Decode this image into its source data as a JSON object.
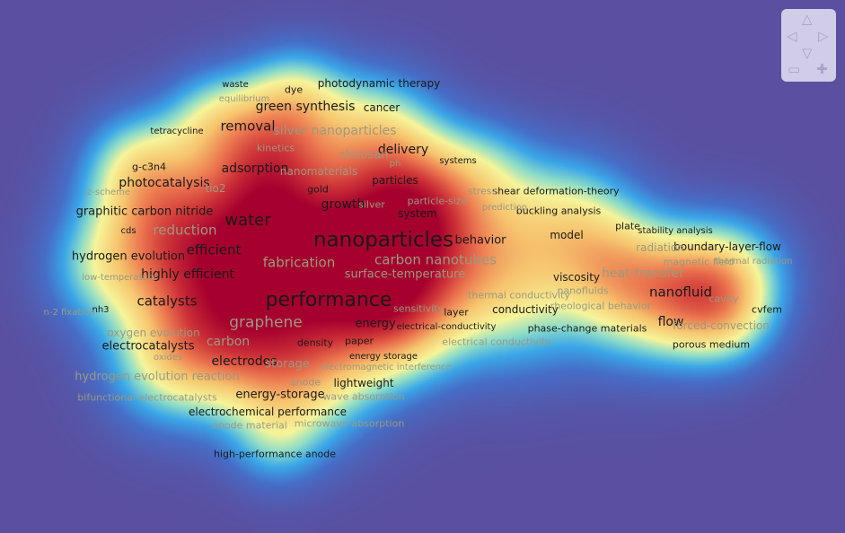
{
  "colors": {
    "background": "#5a4fa0",
    "density_low": "#3aa6e8",
    "density_mid": "#f6f59a",
    "density_high": "#a6002e",
    "label_strong": "#1a1a1a",
    "label_faint": "#9a9a80"
  },
  "terms": [
    {
      "label": "nanoparticles",
      "strong": true
    },
    {
      "label": "performance",
      "strong": true
    },
    {
      "label": "water",
      "strong": true
    },
    {
      "label": "graphene",
      "strong": false
    },
    {
      "label": "removal",
      "strong": true
    },
    {
      "label": "adsorption",
      "strong": true
    },
    {
      "label": "efficient",
      "strong": true
    },
    {
      "label": "reduction",
      "strong": false
    },
    {
      "label": "fabrication",
      "strong": false
    },
    {
      "label": "carbon nanotubes",
      "strong": false
    },
    {
      "label": "catalysts",
      "strong": true
    },
    {
      "label": "nanofluid",
      "strong": true
    },
    {
      "label": "heat-transfer",
      "strong": false
    },
    {
      "label": "silver nanoparticles",
      "strong": false
    },
    {
      "label": "green synthesis",
      "strong": true
    },
    {
      "label": "delivery",
      "strong": true
    },
    {
      "label": "chitosan",
      "strong": false
    },
    {
      "label": "growth",
      "strong": true
    },
    {
      "label": "behavior",
      "strong": true
    },
    {
      "label": "photocatalysis",
      "strong": true
    },
    {
      "label": "graphitic carbon nitride",
      "strong": true
    },
    {
      "label": "hydrogen evolution",
      "strong": true
    },
    {
      "label": "highly efficient",
      "strong": true
    },
    {
      "label": "electrocatalysts",
      "strong": true
    },
    {
      "label": "electrodes",
      "strong": true
    },
    {
      "label": "carbon",
      "strong": false
    },
    {
      "label": "energy-storage",
      "strong": true
    },
    {
      "label": "hydrogen evolution reaction",
      "strong": false
    },
    {
      "label": "energy",
      "strong": true
    },
    {
      "label": "surface-temperature",
      "strong": false
    },
    {
      "label": "flow",
      "strong": true
    },
    {
      "label": "conductivity",
      "strong": true
    },
    {
      "label": "model",
      "strong": true
    },
    {
      "label": "viscosity",
      "strong": true
    },
    {
      "label": "forced-convection",
      "strong": false
    },
    {
      "label": "boundary-layer-flow",
      "strong": true
    },
    {
      "label": "shear deformation-theory",
      "strong": true
    },
    {
      "label": "buckling analysis",
      "strong": true
    },
    {
      "label": "photodynamic therapy",
      "strong": true
    },
    {
      "label": "cancer",
      "strong": true
    },
    {
      "label": "particles",
      "strong": true
    },
    {
      "label": "system",
      "strong": true
    },
    {
      "label": "storage",
      "strong": false
    },
    {
      "label": "lightweight",
      "strong": true
    },
    {
      "label": "electrochemical performance",
      "strong": true
    },
    {
      "label": "oxygen evolution",
      "strong": false
    },
    {
      "label": "nanomaterials",
      "strong": false
    },
    {
      "label": "kinetics",
      "strong": false
    },
    {
      "label": "g-c3n4",
      "strong": true
    },
    {
      "label": "tio2",
      "strong": false
    },
    {
      "label": "waste",
      "strong": true
    },
    {
      "label": "dye",
      "strong": true
    },
    {
      "label": "equilibrium",
      "strong": false
    },
    {
      "label": "tetracycline",
      "strong": true
    },
    {
      "label": "z-scheme",
      "strong": false
    },
    {
      "label": "cds",
      "strong": true
    },
    {
      "label": "low-temperature",
      "strong": false
    },
    {
      "label": "nh3",
      "strong": true
    },
    {
      "label": "n-2 fixation",
      "strong": false
    },
    {
      "label": "oxides",
      "strong": false
    },
    {
      "label": "bifunctional electrocatalysts",
      "strong": false
    },
    {
      "label": "anode",
      "strong": false
    },
    {
      "label": "anode material",
      "strong": false
    },
    {
      "label": "microwave-absorption",
      "strong": false
    },
    {
      "label": "wave absorption",
      "strong": false
    },
    {
      "label": "high-performance anode",
      "strong": true
    },
    {
      "label": "gold",
      "strong": true
    },
    {
      "label": "ph",
      "strong": false
    },
    {
      "label": "systems",
      "strong": true
    },
    {
      "label": "silver",
      "strong": false
    },
    {
      "label": "particle-size",
      "strong": false
    },
    {
      "label": "stress",
      "strong": false
    },
    {
      "label": "prediction",
      "strong": false
    },
    {
      "label": "sensitivity",
      "strong": false
    },
    {
      "label": "layer",
      "strong": true
    },
    {
      "label": "thermal conductivity",
      "strong": false
    },
    {
      "label": "electrical-conductivity",
      "strong": true
    },
    {
      "label": "electrical conductivity",
      "strong": false
    },
    {
      "label": "density",
      "strong": true
    },
    {
      "label": "paper",
      "strong": true
    },
    {
      "label": "energy storage",
      "strong": true
    },
    {
      "label": "electromagnetic interference",
      "strong": false
    },
    {
      "label": "phase-change materials",
      "strong": true
    },
    {
      "label": "rheological behavior",
      "strong": false
    },
    {
      "label": "nanofluids",
      "strong": false
    },
    {
      "label": "plate",
      "strong": true
    },
    {
      "label": "stability analysis",
      "strong": true
    },
    {
      "label": "radiation",
      "strong": false
    },
    {
      "label": "magnetic field",
      "strong": false
    },
    {
      "label": "thermal radiation",
      "strong": false
    },
    {
      "label": "cavity",
      "strong": false
    },
    {
      "label": "cvfem",
      "strong": true
    },
    {
      "label": "porous medium",
      "strong": true
    }
  ],
  "navigator": {
    "up_icon": "triangle-up-icon",
    "down_icon": "triangle-down-icon",
    "left_icon": "triangle-left-icon",
    "right_icon": "triangle-right-icon",
    "zoom_out_icon": "minus-icon",
    "zoom_in_icon": "plus-icon"
  }
}
